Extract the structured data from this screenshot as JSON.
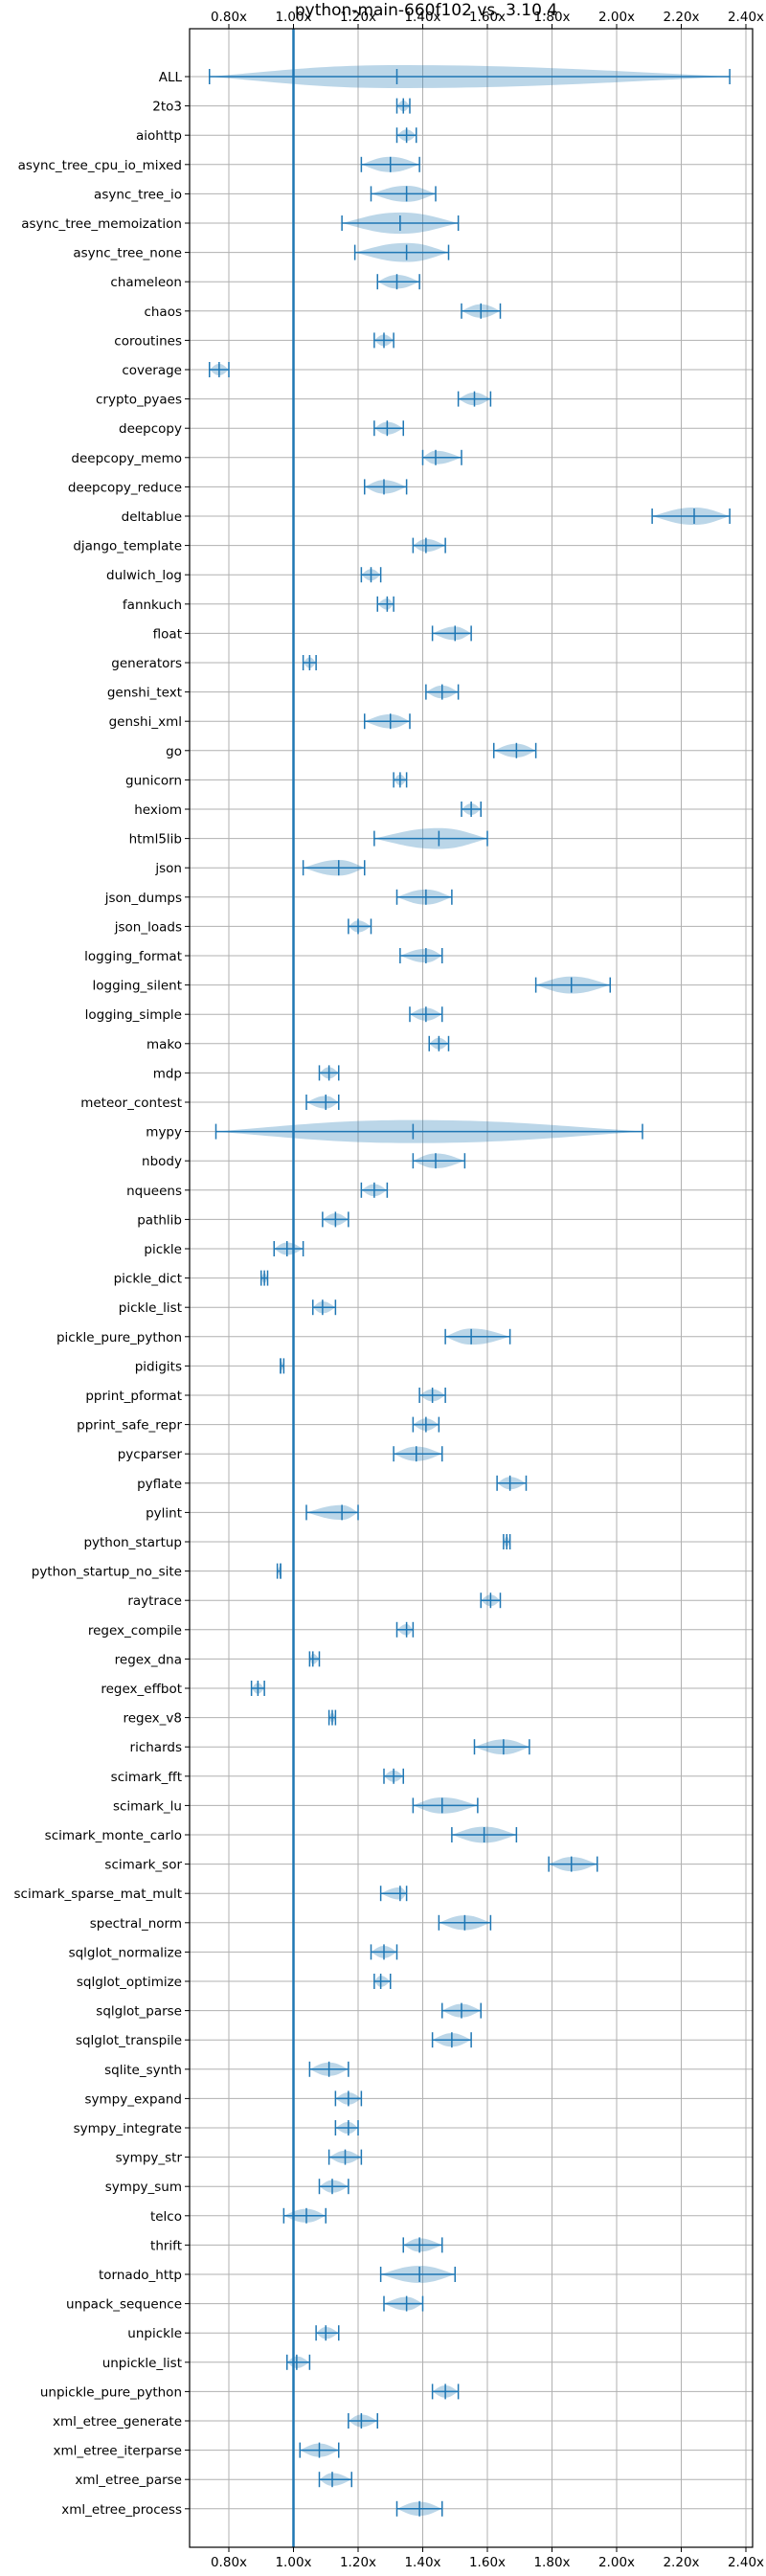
{
  "chart_data": {
    "type": "violin",
    "title": "python-main-660f102 vs. 3.10.4",
    "xlabel": "",
    "ylabel": "",
    "xlim": [
      0.7,
      2.45
    ],
    "x_ticks": [
      0.8,
      1.0,
      1.2,
      1.4,
      1.6,
      1.8,
      2.0,
      2.2,
      2.4
    ],
    "x_tick_labels": [
      "0.80x",
      "1.00x",
      "1.20x",
      "1.40x",
      "1.60x",
      "1.80x",
      "2.00x",
      "2.20x",
      "2.40x"
    ],
    "reference_line": 1.0,
    "grid": true,
    "colors": {
      "series": "#1f77b4",
      "grid": "#b0b0b0"
    },
    "benchmarks": [
      {
        "name": "ALL",
        "min": 0.74,
        "median": 1.32,
        "max": 2.35
      },
      {
        "name": "2to3",
        "min": 1.32,
        "median": 1.34,
        "max": 1.36
      },
      {
        "name": "aiohttp",
        "min": 1.32,
        "median": 1.35,
        "max": 1.38
      },
      {
        "name": "async_tree_cpu_io_mixed",
        "min": 1.21,
        "median": 1.3,
        "max": 1.39
      },
      {
        "name": "async_tree_io",
        "min": 1.24,
        "median": 1.35,
        "max": 1.44
      },
      {
        "name": "async_tree_memoization",
        "min": 1.15,
        "median": 1.33,
        "max": 1.51
      },
      {
        "name": "async_tree_none",
        "min": 1.19,
        "median": 1.35,
        "max": 1.48
      },
      {
        "name": "chameleon",
        "min": 1.26,
        "median": 1.32,
        "max": 1.39
      },
      {
        "name": "chaos",
        "min": 1.52,
        "median": 1.58,
        "max": 1.64
      },
      {
        "name": "coroutines",
        "min": 1.25,
        "median": 1.28,
        "max": 1.31
      },
      {
        "name": "coverage",
        "min": 0.74,
        "median": 0.77,
        "max": 0.8
      },
      {
        "name": "crypto_pyaes",
        "min": 1.51,
        "median": 1.56,
        "max": 1.61
      },
      {
        "name": "deepcopy",
        "min": 1.25,
        "median": 1.29,
        "max": 1.34
      },
      {
        "name": "deepcopy_memo",
        "min": 1.4,
        "median": 1.44,
        "max": 1.52
      },
      {
        "name": "deepcopy_reduce",
        "min": 1.22,
        "median": 1.28,
        "max": 1.35
      },
      {
        "name": "deltablue",
        "min": 2.11,
        "median": 2.24,
        "max": 2.35
      },
      {
        "name": "django_template",
        "min": 1.37,
        "median": 1.41,
        "max": 1.47
      },
      {
        "name": "dulwich_log",
        "min": 1.21,
        "median": 1.24,
        "max": 1.27
      },
      {
        "name": "fannkuch",
        "min": 1.26,
        "median": 1.29,
        "max": 1.31
      },
      {
        "name": "float",
        "min": 1.43,
        "median": 1.5,
        "max": 1.55
      },
      {
        "name": "generators",
        "min": 1.03,
        "median": 1.05,
        "max": 1.07
      },
      {
        "name": "genshi_text",
        "min": 1.41,
        "median": 1.46,
        "max": 1.51
      },
      {
        "name": "genshi_xml",
        "min": 1.22,
        "median": 1.3,
        "max": 1.36
      },
      {
        "name": "go",
        "min": 1.62,
        "median": 1.69,
        "max": 1.75
      },
      {
        "name": "gunicorn",
        "min": 1.31,
        "median": 1.33,
        "max": 1.35
      },
      {
        "name": "hexiom",
        "min": 1.52,
        "median": 1.55,
        "max": 1.58
      },
      {
        "name": "html5lib",
        "min": 1.25,
        "median": 1.45,
        "max": 1.6
      },
      {
        "name": "json",
        "min": 1.03,
        "median": 1.14,
        "max": 1.22
      },
      {
        "name": "json_dumps",
        "min": 1.32,
        "median": 1.41,
        "max": 1.49
      },
      {
        "name": "json_loads",
        "min": 1.17,
        "median": 1.2,
        "max": 1.24
      },
      {
        "name": "logging_format",
        "min": 1.33,
        "median": 1.41,
        "max": 1.46
      },
      {
        "name": "logging_silent",
        "min": 1.75,
        "median": 1.86,
        "max": 1.98
      },
      {
        "name": "logging_simple",
        "min": 1.36,
        "median": 1.41,
        "max": 1.46
      },
      {
        "name": "mako",
        "min": 1.42,
        "median": 1.45,
        "max": 1.48
      },
      {
        "name": "mdp",
        "min": 1.08,
        "median": 1.11,
        "max": 1.14
      },
      {
        "name": "meteor_contest",
        "min": 1.04,
        "median": 1.1,
        "max": 1.14
      },
      {
        "name": "mypy",
        "min": 0.76,
        "median": 1.37,
        "max": 2.08
      },
      {
        "name": "nbody",
        "min": 1.37,
        "median": 1.44,
        "max": 1.53
      },
      {
        "name": "nqueens",
        "min": 1.21,
        "median": 1.25,
        "max": 1.29
      },
      {
        "name": "pathlib",
        "min": 1.09,
        "median": 1.13,
        "max": 1.17
      },
      {
        "name": "pickle",
        "min": 0.94,
        "median": 0.98,
        "max": 1.03
      },
      {
        "name": "pickle_dict",
        "min": 0.9,
        "median": 0.91,
        "max": 0.92
      },
      {
        "name": "pickle_list",
        "min": 1.06,
        "median": 1.09,
        "max": 1.13
      },
      {
        "name": "pickle_pure_python",
        "min": 1.47,
        "median": 1.55,
        "max": 1.67
      },
      {
        "name": "pidigits",
        "min": 0.96,
        "median": 0.96,
        "max": 0.97
      },
      {
        "name": "pprint_pformat",
        "min": 1.39,
        "median": 1.43,
        "max": 1.47
      },
      {
        "name": "pprint_safe_repr",
        "min": 1.37,
        "median": 1.41,
        "max": 1.45
      },
      {
        "name": "pycparser",
        "min": 1.31,
        "median": 1.38,
        "max": 1.46
      },
      {
        "name": "pyflate",
        "min": 1.63,
        "median": 1.67,
        "max": 1.72
      },
      {
        "name": "pylint",
        "min": 1.04,
        "median": 1.15,
        "max": 1.2
      },
      {
        "name": "python_startup",
        "min": 1.65,
        "median": 1.66,
        "max": 1.67
      },
      {
        "name": "python_startup_no_site",
        "min": 0.95,
        "median": 0.96,
        "max": 0.96
      },
      {
        "name": "raytrace",
        "min": 1.58,
        "median": 1.61,
        "max": 1.64
      },
      {
        "name": "regex_compile",
        "min": 1.32,
        "median": 1.35,
        "max": 1.37
      },
      {
        "name": "regex_dna",
        "min": 1.05,
        "median": 1.06,
        "max": 1.08
      },
      {
        "name": "regex_effbot",
        "min": 0.87,
        "median": 0.89,
        "max": 0.91
      },
      {
        "name": "regex_v8",
        "min": 1.11,
        "median": 1.12,
        "max": 1.13
      },
      {
        "name": "richards",
        "min": 1.56,
        "median": 1.65,
        "max": 1.73
      },
      {
        "name": "scimark_fft",
        "min": 1.28,
        "median": 1.31,
        "max": 1.34
      },
      {
        "name": "scimark_lu",
        "min": 1.37,
        "median": 1.46,
        "max": 1.57
      },
      {
        "name": "scimark_monte_carlo",
        "min": 1.49,
        "median": 1.59,
        "max": 1.69
      },
      {
        "name": "scimark_sor",
        "min": 1.79,
        "median": 1.86,
        "max": 1.94
      },
      {
        "name": "scimark_sparse_mat_mult",
        "min": 1.27,
        "median": 1.33,
        "max": 1.35
      },
      {
        "name": "spectral_norm",
        "min": 1.45,
        "median": 1.53,
        "max": 1.61
      },
      {
        "name": "sqlglot_normalize",
        "min": 1.24,
        "median": 1.28,
        "max": 1.32
      },
      {
        "name": "sqlglot_optimize",
        "min": 1.25,
        "median": 1.27,
        "max": 1.3
      },
      {
        "name": "sqlglot_parse",
        "min": 1.46,
        "median": 1.52,
        "max": 1.58
      },
      {
        "name": "sqlglot_transpile",
        "min": 1.43,
        "median": 1.49,
        "max": 1.55
      },
      {
        "name": "sqlite_synth",
        "min": 1.05,
        "median": 1.11,
        "max": 1.17
      },
      {
        "name": "sympy_expand",
        "min": 1.13,
        "median": 1.17,
        "max": 1.21
      },
      {
        "name": "sympy_integrate",
        "min": 1.13,
        "median": 1.17,
        "max": 1.2
      },
      {
        "name": "sympy_str",
        "min": 1.11,
        "median": 1.16,
        "max": 1.21
      },
      {
        "name": "sympy_sum",
        "min": 1.08,
        "median": 1.12,
        "max": 1.17
      },
      {
        "name": "telco",
        "min": 0.97,
        "median": 1.04,
        "max": 1.1
      },
      {
        "name": "thrift",
        "min": 1.34,
        "median": 1.39,
        "max": 1.46
      },
      {
        "name": "tornado_http",
        "min": 1.27,
        "median": 1.39,
        "max": 1.5
      },
      {
        "name": "unpack_sequence",
        "min": 1.28,
        "median": 1.35,
        "max": 1.4
      },
      {
        "name": "unpickle",
        "min": 1.07,
        "median": 1.1,
        "max": 1.14
      },
      {
        "name": "unpickle_list",
        "min": 0.98,
        "median": 1.01,
        "max": 1.05
      },
      {
        "name": "unpickle_pure_python",
        "min": 1.43,
        "median": 1.47,
        "max": 1.51
      },
      {
        "name": "xml_etree_generate",
        "min": 1.17,
        "median": 1.21,
        "max": 1.26
      },
      {
        "name": "xml_etree_iterparse",
        "min": 1.02,
        "median": 1.08,
        "max": 1.14
      },
      {
        "name": "xml_etree_parse",
        "min": 1.08,
        "median": 1.12,
        "max": 1.18
      },
      {
        "name": "xml_etree_process",
        "min": 1.32,
        "median": 1.39,
        "max": 1.46
      }
    ]
  }
}
